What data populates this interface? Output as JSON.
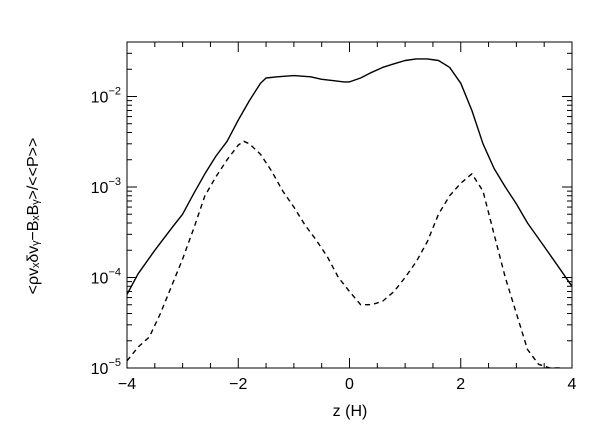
{
  "chart_data": {
    "type": "line",
    "xlabel": "z (H)",
    "ylabel": "<ρvₓδvᵧ−BₓBᵧ>/<<P>>",
    "xlim": [
      -4,
      4
    ],
    "ylim": [
      1e-05,
      0.04
    ],
    "yscale": "log",
    "grid": false,
    "x_ticks": [
      {
        "value": -4,
        "label": "−4"
      },
      {
        "value": -2,
        "label": "−2"
      },
      {
        "value": 0,
        "label": "0"
      },
      {
        "value": 2,
        "label": "2"
      },
      {
        "value": 4,
        "label": "4"
      }
    ],
    "y_ticks": [
      {
        "value": 1e-05,
        "base": "10",
        "exp": "−5"
      },
      {
        "value": 0.0001,
        "base": "10",
        "exp": "−4"
      },
      {
        "value": 0.001,
        "base": "10",
        "exp": "−3"
      },
      {
        "value": 0.01,
        "base": "10",
        "exp": "−2"
      }
    ],
    "series": [
      {
        "style": "solid",
        "x": [
          -4.0,
          -3.8,
          -3.5,
          -3.2,
          -3.0,
          -2.8,
          -2.6,
          -2.4,
          -2.2,
          -2.0,
          -1.8,
          -1.6,
          -1.5,
          -1.3,
          -1.0,
          -0.7,
          -0.5,
          -0.3,
          -0.1,
          0.0,
          0.2,
          0.4,
          0.6,
          0.8,
          1.0,
          1.2,
          1.4,
          1.6,
          1.8,
          2.0,
          2.2,
          2.4,
          2.6,
          2.8,
          3.0,
          3.2,
          3.5,
          3.8,
          4.0
        ],
        "y": [
          6.5e-05,
          0.00011,
          0.0002,
          0.00035,
          0.0005,
          0.00085,
          0.0014,
          0.0022,
          0.0032,
          0.0055,
          0.009,
          0.014,
          0.016,
          0.0165,
          0.017,
          0.0165,
          0.0155,
          0.015,
          0.0145,
          0.0145,
          0.016,
          0.0185,
          0.021,
          0.023,
          0.025,
          0.026,
          0.026,
          0.025,
          0.021,
          0.014,
          0.007,
          0.003,
          0.0016,
          0.001,
          0.00065,
          0.0004,
          0.00022,
          0.00012,
          8e-05
        ]
      },
      {
        "style": "dashed",
        "x": [
          -4.0,
          -3.8,
          -3.6,
          -3.4,
          -3.2,
          -3.0,
          -2.8,
          -2.6,
          -2.4,
          -2.2,
          -2.0,
          -1.9,
          -1.8,
          -1.6,
          -1.4,
          -1.2,
          -1.0,
          -0.8,
          -0.6,
          -0.4,
          -0.2,
          0.0,
          0.2,
          0.4,
          0.6,
          0.8,
          1.0,
          1.2,
          1.4,
          1.6,
          1.8,
          2.0,
          2.2,
          2.4,
          2.6,
          2.8,
          3.0,
          3.2,
          3.4,
          3.6,
          3.8,
          4.0
        ],
        "y": [
          1.2e-05,
          1.7e-05,
          2.2e-05,
          4e-05,
          8e-05,
          0.00016,
          0.00035,
          0.0008,
          0.0013,
          0.002,
          0.0029,
          0.0032,
          0.003,
          0.0023,
          0.0015,
          0.0009,
          0.0006,
          0.00038,
          0.00026,
          0.00017,
          0.0001,
          7e-05,
          5e-05,
          5e-05,
          5.5e-05,
          7e-05,
          0.0001,
          0.00015,
          0.00025,
          0.0005,
          0.0008,
          0.0011,
          0.0014,
          0.0009,
          0.0003,
          0.0001,
          4e-05,
          1.6e-05,
          1.1e-05,
          1e-05,
          1e-05,
          9e-06
        ]
      }
    ]
  }
}
